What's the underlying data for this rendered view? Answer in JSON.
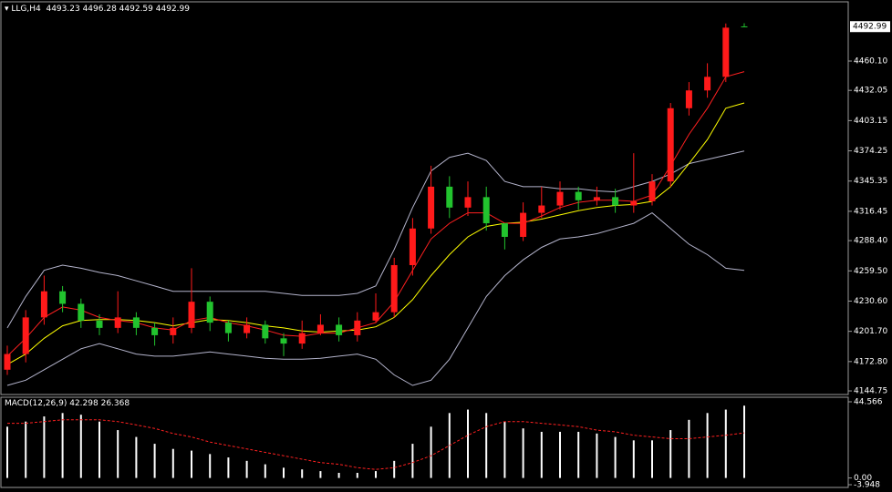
{
  "chart_data": [
    {
      "type": "candlestick",
      "title": "LLG,H4",
      "open": [
        4165,
        4180,
        4215,
        4240,
        4228,
        4212,
        4205,
        4215,
        4205,
        4198,
        4205,
        4230,
        4210,
        4200,
        4208,
        4195,
        4190,
        4200,
        4208,
        4198,
        4212,
        4220,
        4265,
        4300,
        4340,
        4320,
        4330,
        4305,
        4292,
        4315,
        4322,
        4335,
        4327,
        4330,
        4322,
        4326,
        4345,
        4415,
        4432,
        4445,
        4493.23
      ],
      "high": [
        4188,
        4222,
        4255,
        4245,
        4233,
        4218,
        4240,
        4220,
        4210,
        4215,
        4262,
        4235,
        4212,
        4215,
        4212,
        4200,
        4212,
        4218,
        4215,
        4220,
        4238,
        4272,
        4310,
        4360,
        4350,
        4345,
        4340,
        4305,
        4325,
        4340,
        4345,
        4340,
        4340,
        4338,
        4372,
        4352,
        4420,
        4440,
        4458,
        4496,
        4496.28
      ],
      "low": [
        4160,
        4172,
        4208,
        4220,
        4205,
        4198,
        4200,
        4198,
        4188,
        4190,
        4200,
        4202,
        4192,
        4195,
        4190,
        4178,
        4185,
        4198,
        4192,
        4192,
        4210,
        4215,
        4255,
        4295,
        4310,
        4312,
        4298,
        4280,
        4288,
        4310,
        4318,
        4318,
        4322,
        4315,
        4315,
        4322,
        4340,
        4408,
        4425,
        4440,
        4492.59
      ],
      "close": [
        4180,
        4215,
        4240,
        4228,
        4212,
        4205,
        4215,
        4205,
        4198,
        4205,
        4230,
        4210,
        4200,
        4208,
        4195,
        4190,
        4200,
        4208,
        4198,
        4212,
        4220,
        4265,
        4300,
        4340,
        4320,
        4330,
        4305,
        4292,
        4315,
        4322,
        4335,
        4327,
        4330,
        4322,
        4326,
        4345,
        4415,
        4432,
        4445,
        4492,
        4492.99
      ],
      "up_color": "#ff1a1a",
      "down_color": "#22c32e",
      "overlays": [
        {
          "color": "#b4b4cc",
          "values": [
            4205,
            4235,
            4260,
            4265,
            4262,
            4258,
            4255,
            4250,
            4245,
            4240,
            4240,
            4240,
            4240,
            4240,
            4240,
            4238,
            4236,
            4236,
            4236,
            4238,
            4245,
            4280,
            4320,
            4355,
            4368,
            4372,
            4365,
            4345,
            4340,
            4340,
            4338,
            4338,
            4336,
            4335,
            4340,
            4345,
            4352,
            4362,
            4366,
            4370,
            4374
          ]
        },
        {
          "color": "#b4b4cc",
          "values": [
            4150,
            4155,
            4165,
            4175,
            4185,
            4190,
            4185,
            4180,
            4178,
            4178,
            4180,
            4182,
            4180,
            4178,
            4176,
            4175,
            4175,
            4176,
            4178,
            4180,
            4175,
            4160,
            4150,
            4155,
            4175,
            4205,
            4235,
            4255,
            4270,
            4282,
            4290,
            4292,
            4295,
            4300,
            4305,
            4315,
            4300,
            4285,
            4275,
            4262,
            4260
          ]
        },
        {
          "color": "#ffff00",
          "values": [
            4170,
            4180,
            4195,
            4207,
            4212,
            4213,
            4213,
            4212,
            4210,
            4207,
            4210,
            4213,
            4212,
            4210,
            4207,
            4205,
            4202,
            4201,
            4202,
            4203,
            4206,
            4215,
            4232,
            4255,
            4275,
            4292,
            4302,
            4305,
            4306,
            4309,
            4313,
            4317,
            4320,
            4322,
            4323,
            4326,
            4340,
            4362,
            4385,
            4415,
            4420
          ]
        },
        {
          "color": "#ff2020",
          "values": [
            4178,
            4195,
            4215,
            4225,
            4222,
            4215,
            4212,
            4210,
            4205,
            4203,
            4212,
            4215,
            4210,
            4207,
            4203,
            4198,
            4197,
            4200,
            4200,
            4205,
            4210,
            4230,
            4260,
            4290,
            4305,
            4315,
            4315,
            4305,
            4305,
            4312,
            4320,
            4325,
            4327,
            4327,
            4326,
            4332,
            4360,
            4390,
            4415,
            4445,
            4450
          ]
        }
      ],
      "ylim": [
        4141.3,
        4514.1
      ],
      "yticks": [
        {
          "value": 4460.1,
          "label": "4460.10"
        },
        4432.05,
        4403.15,
        4374.25,
        4345.35,
        4316.45,
        {
          "value": 4288.4,
          "label": "4288.40"
        },
        {
          "value": 4259.5,
          "label": "4259.50"
        },
        {
          "value": 4230.6,
          "label": "4230.60"
        },
        {
          "value": 4201.7,
          "label": "4201.70"
        },
        {
          "value": 4172.8,
          "label": "4172.80"
        },
        4144.75
      ]
    },
    {
      "type": "macd",
      "title": "MACD(12,26,9)",
      "series": [
        {
          "color": "#ffffff",
          "style": "histogram",
          "values": [
            30,
            33,
            36,
            38,
            37,
            33,
            28,
            24,
            20,
            17,
            16,
            14,
            12,
            10,
            8,
            6,
            5,
            4,
            3,
            3,
            4,
            10,
            20,
            30,
            38,
            40,
            38,
            33,
            29,
            27,
            27,
            27,
            26,
            24,
            22,
            22,
            28,
            34,
            38,
            40,
            42.298
          ]
        },
        {
          "color": "#ff2020",
          "style": "dashed",
          "values": [
            32,
            32,
            33,
            34,
            34,
            34,
            33,
            31,
            29,
            26,
            24,
            21,
            19,
            17,
            15,
            13,
            11,
            9,
            8,
            6,
            5,
            6,
            9,
            13,
            19,
            25,
            30,
            33,
            33,
            32,
            31,
            30,
            28,
            27,
            25,
            24,
            23,
            23,
            24,
            25,
            26.368
          ]
        }
      ],
      "ylim": [
        -3.948,
        44.566
      ],
      "yticks": [
        44.566,
        {
          "value": 0,
          "label": "0.00"
        },
        -3.948
      ]
    }
  ]
}
